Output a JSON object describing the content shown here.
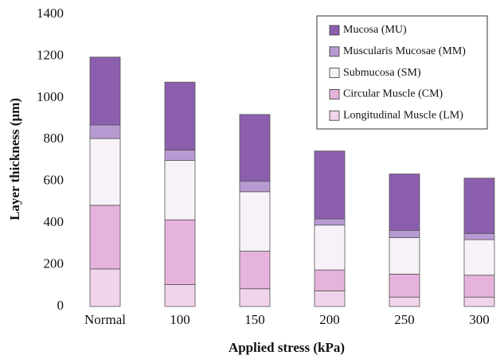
{
  "chart_data": {
    "type": "stacked-bar",
    "x_label": "Applied stress (kPa)",
    "y_label": "Layer thickness (μm)",
    "categories": [
      "Normal",
      "100",
      "150",
      "200",
      "250",
      "300"
    ],
    "series": [
      {
        "name": "Mucosa (MU)",
        "color": "#8c5fae",
        "values": [
          325,
          325,
          320,
          325,
          270,
          265
        ]
      },
      {
        "name": "Muscularis Mucosae (MM)",
        "color": "#b89ad3",
        "values": [
          65,
          50,
          50,
          30,
          35,
          30
        ]
      },
      {
        "name": "Submucosa (SM)",
        "color": "#f6f2f8",
        "values": [
          320,
          285,
          285,
          215,
          175,
          170
        ]
      },
      {
        "name": "Circular Muscle (CM)",
        "color": "#e6b3dc",
        "values": [
          305,
          310,
          180,
          100,
          110,
          105
        ]
      },
      {
        "name": "Longitudinal Muscle (LM)",
        "color": "#f0d3ec",
        "values": [
          180,
          105,
          85,
          75,
          45,
          45
        ]
      }
    ],
    "ylim": [
      0,
      1400
    ],
    "yticks": [
      0,
      200,
      400,
      600,
      800,
      1000,
      1200,
      1400
    ],
    "legend": "upper right"
  }
}
